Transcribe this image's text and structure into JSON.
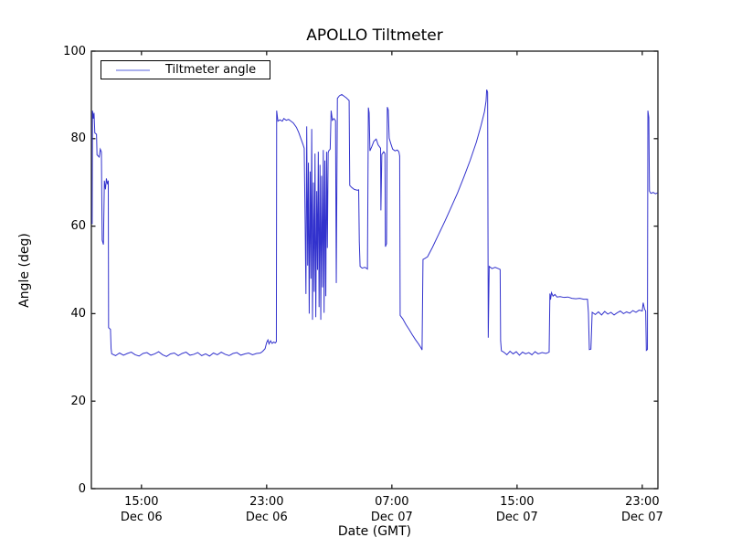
{
  "chart_data": {
    "type": "line",
    "title": "APOLLO Tiltmeter",
    "xlabel": "Date (GMT)",
    "ylabel": "Angle (deg)",
    "ylim": [
      0,
      100
    ],
    "yticks": [
      0,
      20,
      40,
      60,
      80,
      100
    ],
    "x_unit": "hours since Dec 06 00:00 GMT",
    "xlim_hours": [
      11.8,
      48.0
    ],
    "xticks": [
      {
        "hour": 15,
        "time": "15:00",
        "date": "Dec 06"
      },
      {
        "hour": 23,
        "time": "23:00",
        "date": "Dec 06"
      },
      {
        "hour": 31,
        "time": "07:00",
        "date": "Dec 07"
      },
      {
        "hour": 39,
        "time": "15:00",
        "date": "Dec 07"
      },
      {
        "hour": 47,
        "time": "23:00",
        "date": "Dec 07"
      }
    ],
    "grid": false,
    "legend": {
      "label": "Tiltmeter angle",
      "position": "upper left",
      "sample_color": "#aab0ee"
    },
    "line_color": "#3232cd",
    "axis_color": "#1a1a1a",
    "series": [
      {
        "name": "Tiltmeter angle",
        "points": [
          [
            11.85,
            60.5
          ],
          [
            11.87,
            86.4
          ],
          [
            11.93,
            84.6
          ],
          [
            11.97,
            85.9
          ],
          [
            12.02,
            81.3
          ],
          [
            12.13,
            81.0
          ],
          [
            12.16,
            76.3
          ],
          [
            12.3,
            75.8
          ],
          [
            12.37,
            77.6
          ],
          [
            12.44,
            77.0
          ],
          [
            12.49,
            56.8
          ],
          [
            12.57,
            55.8
          ],
          [
            12.63,
            70.4
          ],
          [
            12.7,
            68.4
          ],
          [
            12.76,
            70.9
          ],
          [
            12.82,
            69.6
          ],
          [
            12.88,
            70.4
          ],
          [
            12.9,
            36.8
          ],
          [
            13.02,
            36.4
          ],
          [
            13.06,
            32.0
          ],
          [
            13.1,
            30.8
          ],
          [
            13.35,
            30.4
          ],
          [
            13.6,
            31.0
          ],
          [
            13.85,
            30.5
          ],
          [
            14.1,
            30.9
          ],
          [
            14.35,
            31.2
          ],
          [
            14.6,
            30.6
          ],
          [
            14.85,
            30.3
          ],
          [
            15.1,
            30.9
          ],
          [
            15.35,
            31.1
          ],
          [
            15.6,
            30.5
          ],
          [
            15.85,
            30.8
          ],
          [
            16.1,
            31.3
          ],
          [
            16.35,
            30.6
          ],
          [
            16.6,
            30.2
          ],
          [
            16.85,
            30.8
          ],
          [
            17.1,
            31.0
          ],
          [
            17.35,
            30.4
          ],
          [
            17.6,
            30.9
          ],
          [
            17.85,
            31.2
          ],
          [
            18.1,
            30.5
          ],
          [
            18.35,
            30.7
          ],
          [
            18.6,
            31.1
          ],
          [
            18.85,
            30.4
          ],
          [
            19.1,
            30.8
          ],
          [
            19.35,
            30.3
          ],
          [
            19.6,
            31.0
          ],
          [
            19.85,
            30.6
          ],
          [
            20.1,
            31.2
          ],
          [
            20.35,
            30.7
          ],
          [
            20.6,
            30.4
          ],
          [
            20.85,
            30.9
          ],
          [
            21.1,
            31.1
          ],
          [
            21.35,
            30.5
          ],
          [
            21.6,
            30.8
          ],
          [
            21.85,
            31.0
          ],
          [
            22.1,
            30.6
          ],
          [
            22.35,
            30.9
          ],
          [
            22.6,
            31.0
          ],
          [
            22.75,
            31.4
          ],
          [
            22.9,
            32.0
          ],
          [
            23.0,
            33.4
          ],
          [
            23.08,
            34.0
          ],
          [
            23.15,
            33.1
          ],
          [
            23.25,
            33.8
          ],
          [
            23.35,
            33.2
          ],
          [
            23.45,
            33.5
          ],
          [
            23.55,
            33.3
          ],
          [
            23.62,
            33.6
          ],
          [
            23.64,
            86.4
          ],
          [
            23.72,
            84.0
          ],
          [
            23.85,
            84.3
          ],
          [
            24.0,
            84.0
          ],
          [
            24.1,
            84.6
          ],
          [
            24.25,
            84.2
          ],
          [
            24.4,
            84.4
          ],
          [
            24.55,
            84.0
          ],
          [
            24.7,
            83.6
          ],
          [
            24.9,
            82.6
          ],
          [
            25.05,
            81.4
          ],
          [
            25.2,
            79.9
          ],
          [
            25.32,
            78.7
          ],
          [
            25.4,
            77.8
          ],
          [
            25.46,
            60.6
          ],
          [
            25.51,
            44.5
          ],
          [
            25.56,
            82.8
          ],
          [
            25.62,
            51.0
          ],
          [
            25.67,
            74.5
          ],
          [
            25.72,
            40.0
          ],
          [
            25.78,
            72.5
          ],
          [
            25.83,
            48.0
          ],
          [
            25.88,
            82.2
          ],
          [
            25.93,
            38.6
          ],
          [
            25.99,
            70.0
          ],
          [
            26.04,
            45.0
          ],
          [
            26.09,
            76.6
          ],
          [
            26.14,
            39.2
          ],
          [
            26.2,
            68.0
          ],
          [
            26.25,
            50.0
          ],
          [
            26.3,
            77.0
          ],
          [
            26.35,
            41.5
          ],
          [
            26.41,
            74.0
          ],
          [
            26.46,
            38.6
          ],
          [
            26.51,
            71.5
          ],
          [
            26.57,
            46.0
          ],
          [
            26.62,
            77.4
          ],
          [
            26.67,
            40.2
          ],
          [
            26.72,
            75.0
          ],
          [
            26.78,
            44.0
          ],
          [
            26.83,
            77.0
          ],
          [
            26.88,
            55.0
          ],
          [
            26.93,
            76.8
          ],
          [
            26.98,
            77.3
          ],
          [
            27.06,
            77.6
          ],
          [
            27.12,
            86.4
          ],
          [
            27.2,
            84.2
          ],
          [
            27.3,
            84.6
          ],
          [
            27.4,
            84.1
          ],
          [
            27.45,
            47.0
          ],
          [
            27.52,
            89.2
          ],
          [
            27.65,
            89.8
          ],
          [
            27.8,
            90.1
          ],
          [
            27.95,
            89.7
          ],
          [
            28.1,
            89.3
          ],
          [
            28.27,
            88.7
          ],
          [
            28.31,
            69.3
          ],
          [
            28.45,
            68.8
          ],
          [
            28.6,
            68.4
          ],
          [
            28.8,
            68.2
          ],
          [
            28.88,
            68.3
          ],
          [
            28.92,
            56.5
          ],
          [
            28.97,
            50.8
          ],
          [
            29.1,
            50.4
          ],
          [
            29.28,
            50.6
          ],
          [
            29.44,
            50.2
          ],
          [
            29.5,
            87.1
          ],
          [
            29.55,
            85.9
          ],
          [
            29.6,
            77.2
          ],
          [
            29.72,
            78.2
          ],
          [
            29.85,
            79.4
          ],
          [
            30.0,
            79.9
          ],
          [
            30.12,
            78.6
          ],
          [
            30.28,
            77.8
          ],
          [
            30.3,
            63.6
          ],
          [
            30.36,
            76.4
          ],
          [
            30.48,
            77.0
          ],
          [
            30.56,
            76.6
          ],
          [
            30.59,
            55.3
          ],
          [
            30.66,
            56.0
          ],
          [
            30.71,
            87.2
          ],
          [
            30.77,
            86.6
          ],
          [
            30.83,
            80.1
          ],
          [
            30.93,
            78.9
          ],
          [
            31.05,
            77.6
          ],
          [
            31.2,
            77.2
          ],
          [
            31.35,
            77.4
          ],
          [
            31.45,
            77.0
          ],
          [
            31.5,
            76.0
          ],
          [
            31.53,
            39.6
          ],
          [
            31.7,
            38.8
          ],
          [
            31.9,
            37.5
          ],
          [
            32.1,
            36.4
          ],
          [
            32.3,
            35.2
          ],
          [
            32.5,
            34.1
          ],
          [
            32.7,
            33.1
          ],
          [
            32.86,
            32.2
          ],
          [
            32.93,
            31.7
          ],
          [
            32.99,
            52.4
          ],
          [
            33.1,
            52.6
          ],
          [
            33.28,
            53.0
          ],
          [
            33.6,
            55.2
          ],
          [
            34.0,
            58.2
          ],
          [
            34.4,
            61.2
          ],
          [
            34.8,
            64.4
          ],
          [
            35.2,
            67.6
          ],
          [
            35.6,
            71.2
          ],
          [
            36.0,
            75.0
          ],
          [
            36.4,
            79.2
          ],
          [
            36.7,
            83.0
          ],
          [
            36.92,
            86.2
          ],
          [
            37.02,
            88.6
          ],
          [
            37.06,
            91.2
          ],
          [
            37.12,
            90.6
          ],
          [
            37.16,
            34.5
          ],
          [
            37.22,
            50.8
          ],
          [
            37.4,
            50.3
          ],
          [
            37.6,
            50.6
          ],
          [
            37.8,
            50.3
          ],
          [
            37.92,
            50.1
          ],
          [
            37.95,
            33.8
          ],
          [
            38.0,
            31.5
          ],
          [
            38.15,
            31.2
          ],
          [
            38.35,
            30.6
          ],
          [
            38.55,
            31.4
          ],
          [
            38.75,
            30.8
          ],
          [
            38.95,
            31.3
          ],
          [
            39.15,
            30.5
          ],
          [
            39.35,
            31.2
          ],
          [
            39.55,
            30.8
          ],
          [
            39.75,
            31.1
          ],
          [
            39.95,
            30.6
          ],
          [
            40.15,
            31.3
          ],
          [
            40.35,
            30.8
          ],
          [
            40.6,
            31.1
          ],
          [
            40.85,
            30.9
          ],
          [
            41.05,
            31.2
          ],
          [
            41.1,
            44.6
          ],
          [
            41.14,
            43.2
          ],
          [
            41.2,
            44.8
          ],
          [
            41.3,
            44.0
          ],
          [
            41.42,
            44.4
          ],
          [
            41.55,
            43.8
          ],
          [
            41.75,
            43.9
          ],
          [
            42.0,
            43.7
          ],
          [
            42.25,
            43.8
          ],
          [
            42.5,
            43.5
          ],
          [
            42.75,
            43.4
          ],
          [
            43.0,
            43.5
          ],
          [
            43.25,
            43.3
          ],
          [
            43.5,
            43.3
          ],
          [
            43.56,
            40.2
          ],
          [
            43.62,
            31.8
          ],
          [
            43.72,
            31.9
          ],
          [
            43.8,
            40.3
          ],
          [
            44.0,
            39.8
          ],
          [
            44.2,
            40.4
          ],
          [
            44.4,
            39.7
          ],
          [
            44.6,
            40.5
          ],
          [
            44.8,
            39.9
          ],
          [
            45.0,
            40.3
          ],
          [
            45.2,
            39.7
          ],
          [
            45.4,
            40.2
          ],
          [
            45.6,
            40.6
          ],
          [
            45.8,
            40.0
          ],
          [
            46.0,
            40.4
          ],
          [
            46.2,
            40.1
          ],
          [
            46.4,
            40.7
          ],
          [
            46.6,
            40.3
          ],
          [
            46.8,
            40.8
          ],
          [
            47.0,
            40.6
          ],
          [
            47.06,
            42.5
          ],
          [
            47.15,
            41.0
          ],
          [
            47.22,
            40.6
          ],
          [
            47.26,
            31.6
          ],
          [
            47.33,
            31.8
          ],
          [
            47.36,
            86.4
          ],
          [
            47.42,
            84.8
          ],
          [
            47.46,
            68.0
          ],
          [
            47.55,
            67.5
          ],
          [
            47.7,
            67.7
          ],
          [
            47.85,
            67.4
          ],
          [
            47.97,
            67.6
          ]
        ]
      }
    ]
  }
}
